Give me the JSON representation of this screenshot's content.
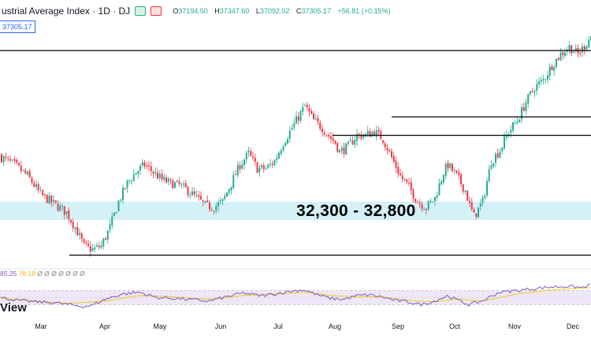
{
  "header": {
    "title": "ustrial Average Index · 1D · DJ",
    "ohlc": [
      {
        "label": "O",
        "value": "37194.50"
      },
      {
        "label": "H",
        "value": "37347.60"
      },
      {
        "label": "L",
        "value": "37092.02"
      },
      {
        "label": "C",
        "value": "37305.17"
      },
      {
        "label": "",
        "value": "+56.81 (+0.15%)"
      }
    ]
  },
  "price_tag": "37305.17",
  "zone_label": "32,300 - 32,800",
  "rsi_legend": {
    "rsi_value": "85.25",
    "ma_value": "78.18",
    "extra": "Ø Ø Ø Ø Ø Ø Ø"
  },
  "watermark": "View",
  "colors": {
    "up": "#22ab94",
    "down": "#f23645",
    "zone": "#d4f1f7",
    "rsi": "#7e57c2",
    "rsi_ma": "#f5c518",
    "rsi_band": "#ede7f6"
  },
  "chart_data": {
    "type": "candlestick",
    "x_axis": {
      "labels": [
        "Mar",
        "Apr",
        "May",
        "Jun",
        "Jul",
        "Aug",
        "Sep",
        "Oct",
        "Nov",
        "Dec"
      ]
    },
    "y_range": [
      31000,
      37800
    ],
    "support_zone": [
      32300,
      32800
    ],
    "horizontal_lines": [
      31350,
      34600,
      35100,
      35650,
      36900
    ],
    "price_path": [
      [
        0,
        34000
      ],
      [
        6,
        33800
      ],
      [
        12,
        33500
      ],
      [
        18,
        33000
      ],
      [
        24,
        32750
      ],
      [
        30,
        32500
      ],
      [
        34,
        32100
      ],
      [
        38,
        31600
      ],
      [
        42,
        31500
      ],
      [
        46,
        31600
      ],
      [
        50,
        32100
      ],
      [
        54,
        32800
      ],
      [
        58,
        33300
      ],
      [
        62,
        33600
      ],
      [
        66,
        33800
      ],
      [
        70,
        33600
      ],
      [
        74,
        33400
      ],
      [
        78,
        33300
      ],
      [
        82,
        33250
      ],
      [
        86,
        33100
      ],
      [
        90,
        32900
      ],
      [
        94,
        32700
      ],
      [
        98,
        32650
      ],
      [
        102,
        32800
      ],
      [
        106,
        33300
      ],
      [
        110,
        33800
      ],
      [
        114,
        34100
      ],
      [
        118,
        33700
      ],
      [
        122,
        33700
      ],
      [
        126,
        33900
      ],
      [
        130,
        34400
      ],
      [
        134,
        34800
      ],
      [
        138,
        35200
      ],
      [
        140,
        35400
      ],
      [
        144,
        35000
      ],
      [
        148,
        34800
      ],
      [
        150,
        34650
      ],
      [
        154,
        34400
      ],
      [
        156,
        34150
      ],
      [
        160,
        34300
      ],
      [
        164,
        34600
      ],
      [
        168,
        34600
      ],
      [
        172,
        34700
      ],
      [
        176,
        34500
      ],
      [
        180,
        34000
      ],
      [
        184,
        33500
      ],
      [
        188,
        33200
      ],
      [
        192,
        32800
      ],
      [
        196,
        32650
      ],
      [
        200,
        32900
      ],
      [
        204,
        33600
      ],
      [
        206,
        33800
      ],
      [
        210,
        33500
      ],
      [
        214,
        33100
      ],
      [
        216,
        32700
      ],
      [
        218,
        32400
      ],
      [
        222,
        32800
      ],
      [
        226,
        33900
      ],
      [
        230,
        34200
      ],
      [
        234,
        34700
      ],
      [
        238,
        35000
      ],
      [
        242,
        35500
      ],
      [
        246,
        35900
      ],
      [
        250,
        36100
      ],
      [
        254,
        36500
      ],
      [
        258,
        36800
      ],
      [
        262,
        37000
      ],
      [
        266,
        36800
      ],
      [
        270,
        37100
      ],
      [
        272,
        37300
      ]
    ],
    "rsi": {
      "value": 85.25,
      "ma_value": 78.18,
      "band": [
        30,
        70
      ],
      "series": [
        [
          0,
          50
        ],
        [
          8,
          42
        ],
        [
          16,
          38
        ],
        [
          24,
          36
        ],
        [
          32,
          30
        ],
        [
          38,
          25
        ],
        [
          42,
          28
        ],
        [
          48,
          45
        ],
        [
          56,
          60
        ],
        [
          64,
          65
        ],
        [
          72,
          50
        ],
        [
          80,
          48
        ],
        [
          88,
          44
        ],
        [
          96,
          40
        ],
        [
          104,
          52
        ],
        [
          112,
          63
        ],
        [
          120,
          55
        ],
        [
          128,
          62
        ],
        [
          136,
          70
        ],
        [
          140,
          72
        ],
        [
          146,
          58
        ],
        [
          152,
          48
        ],
        [
          158,
          45
        ],
        [
          164,
          55
        ],
        [
          170,
          58
        ],
        [
          176,
          52
        ],
        [
          182,
          42
        ],
        [
          188,
          38
        ],
        [
          194,
          30
        ],
        [
          200,
          40
        ],
        [
          206,
          55
        ],
        [
          210,
          45
        ],
        [
          216,
          30
        ],
        [
          222,
          40
        ],
        [
          230,
          65
        ],
        [
          238,
          70
        ],
        [
          246,
          75
        ],
        [
          254,
          80
        ],
        [
          262,
          82
        ],
        [
          268,
          78
        ],
        [
          272,
          85
        ]
      ],
      "ma_series": [
        [
          0,
          48
        ],
        [
          16,
          40
        ],
        [
          32,
          34
        ],
        [
          48,
          40
        ],
        [
          64,
          56
        ],
        [
          80,
          52
        ],
        [
          96,
          45
        ],
        [
          112,
          56
        ],
        [
          128,
          60
        ],
        [
          140,
          66
        ],
        [
          152,
          56
        ],
        [
          164,
          52
        ],
        [
          176,
          52
        ],
        [
          188,
          42
        ],
        [
          200,
          38
        ],
        [
          210,
          46
        ],
        [
          222,
          40
        ],
        [
          238,
          60
        ],
        [
          254,
          72
        ],
        [
          272,
          78
        ]
      ]
    }
  }
}
